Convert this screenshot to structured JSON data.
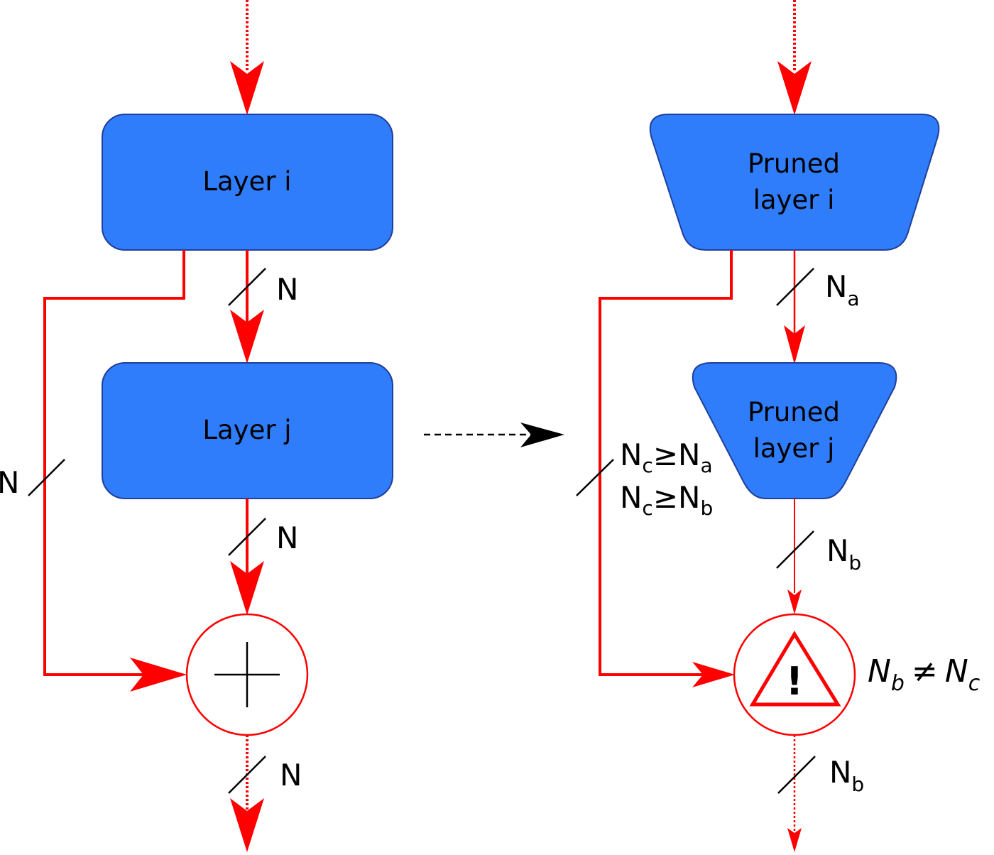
{
  "colors": {
    "block_fill": "#2f7dfa",
    "block_stroke": "#1f3f9a",
    "signal": "#ff0000",
    "text": "#000000"
  },
  "left": {
    "layer_i": "Layer i",
    "layer_j": "Layer j",
    "width_after_i": "N",
    "width_after_j": "N",
    "width_skip": "N",
    "width_output": "N",
    "merge_symbol": "add"
  },
  "right": {
    "layer_i_line1": "Pruned",
    "layer_i_line2": "layer i",
    "layer_j_line1": "Pruned",
    "layer_j_line2": "layer j",
    "width_after_i": {
      "base": "N",
      "sub": "a"
    },
    "width_after_j": {
      "base": "N",
      "sub": "b"
    },
    "width_output": {
      "base": "N",
      "sub": "b"
    },
    "skip_condition_1": {
      "lhs": "N",
      "lhs_sub": "c",
      "op": "≥",
      "rhs": "N",
      "rhs_sub": "a"
    },
    "skip_condition_2": {
      "lhs": "N",
      "lhs_sub": "c",
      "op": "≥",
      "rhs": "N",
      "rhs_sub": "b"
    },
    "merge_symbol": "warning",
    "warning_glyph": "!",
    "mismatch": {
      "lhs": "N",
      "lhs_sub": "b",
      "op": "≠",
      "rhs": "N",
      "rhs_sub": "c"
    }
  },
  "transition_arrow": "dashed-arrow"
}
